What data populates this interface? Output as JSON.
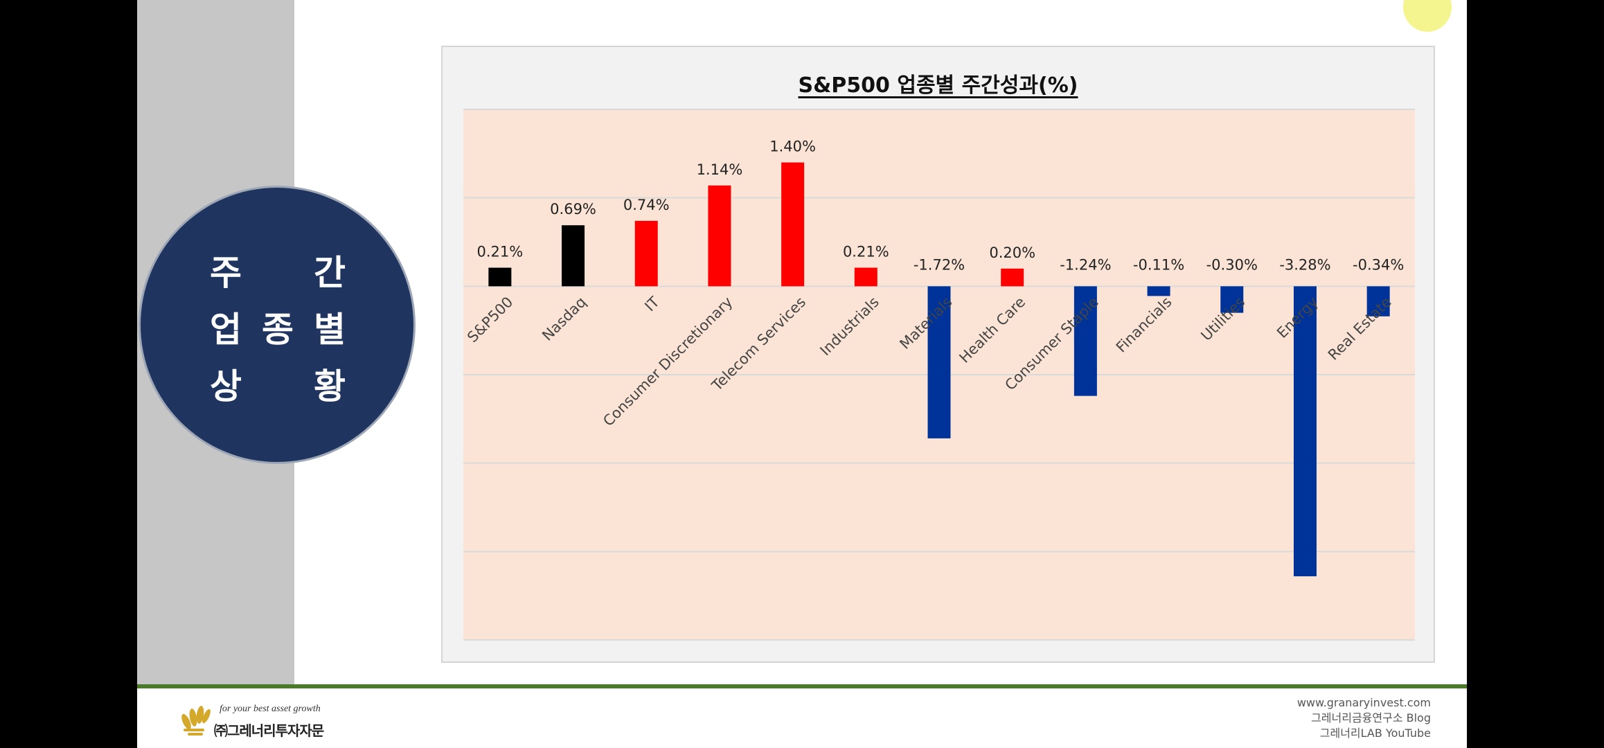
{
  "side_badge": {
    "lines": [
      {
        "left": "주",
        "right": "간"
      },
      {
        "chars": [
          "업",
          "종",
          "별"
        ]
      },
      {
        "left": "상",
        "right": "황"
      }
    ]
  },
  "chart_data": {
    "type": "bar",
    "title": "S&P500 업종별 주간성과(%)",
    "categories": [
      "S&P500",
      "Nasdaq",
      "IT",
      "Consumer Discretionary",
      "Telecom Services",
      "Industrials",
      "Materials",
      "Health Care",
      "Consumer Staple",
      "Financials",
      "Utilities",
      "Energy",
      "Real Estate"
    ],
    "values": [
      0.21,
      0.69,
      0.74,
      1.14,
      1.4,
      0.21,
      -1.72,
      0.2,
      -1.24,
      -0.11,
      -0.3,
      -3.28,
      -0.34
    ],
    "data_labels": [
      "0.21%",
      "0.69%",
      "0.74%",
      "1.14%",
      "1.40%",
      "0.21%",
      "-1.72%",
      "0.20%",
      "-1.24%",
      "-0.11%",
      "-0.30%",
      "-3.28%",
      "-0.34%"
    ],
    "bar_colors": [
      "#000000",
      "#000000",
      "#ff0000",
      "#ff0000",
      "#ff0000",
      "#ff0000",
      "#003399",
      "#ff0000",
      "#003399",
      "#003399",
      "#003399",
      "#003399",
      "#003399"
    ],
    "ylim": [
      -4,
      2
    ],
    "gridlines": [
      2,
      1,
      0,
      -1,
      -2,
      -3,
      -4
    ],
    "grid": true,
    "plot_background": "#fbe4d5",
    "xlabel": "",
    "ylabel": ""
  },
  "footer": {
    "tagline": "for your best asset growth",
    "company": "㈜그레너리투자자문",
    "links": [
      "www.granaryinvest.com",
      "그레너리금융연구소 Blog",
      "그레너리LAB YouTube"
    ]
  },
  "colors": {
    "accent_green": "#4a7a2a",
    "badge_navy": "#1f3560",
    "positive": "#ff0000",
    "negative": "#003399",
    "index": "#000000"
  }
}
